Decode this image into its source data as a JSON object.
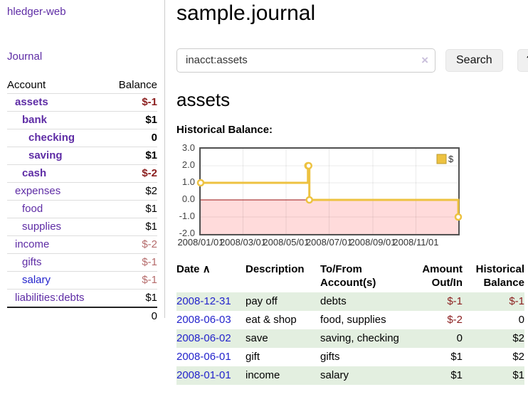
{
  "colors": {
    "purple": "#5e2ca5",
    "link_blue": "#2323cc",
    "negative_strong": "#8b1e1e",
    "negative_muted": "#b56b6b",
    "row_stripe_green": "#e3efe0",
    "chart_line_gold": "#edc240",
    "chart_negative_pink": "#ffdbdb",
    "chart_zero_line": "#991111"
  },
  "app": {
    "brand": "hledger-web",
    "nav_journal": "Journal"
  },
  "sidebar": {
    "accounts_header": "Account",
    "balance_header": "Balance",
    "accounts": [
      {
        "name": "assets",
        "balance": "$-1"
      },
      {
        "name": "bank",
        "balance": "$1"
      },
      {
        "name": "checking",
        "balance": "0"
      },
      {
        "name": "saving",
        "balance": "$1"
      },
      {
        "name": "cash",
        "balance": "$-2"
      },
      {
        "name": "expenses",
        "balance": "$2"
      },
      {
        "name": "food",
        "balance": "$1"
      },
      {
        "name": "supplies",
        "balance": "$1"
      },
      {
        "name": "income",
        "balance": "$-2"
      },
      {
        "name": "gifts",
        "balance": "$-1"
      },
      {
        "name": "salary",
        "balance": "$-1"
      },
      {
        "name": "liabilities:debts",
        "balance": "$1"
      }
    ],
    "total": "0"
  },
  "header": {
    "title": "sample.journal"
  },
  "search": {
    "value": "inacct:assets",
    "clear_icon": "×",
    "search_button": "Search",
    "help_button": "?"
  },
  "account_view": {
    "heading": "assets"
  },
  "chart_data": {
    "type": "line",
    "step": true,
    "title": "Historical Balance:",
    "xlabel": "",
    "ylabel": "",
    "xrange": [
      "2008-01-01",
      "2008-12-31"
    ],
    "ylim": [
      -2,
      3
    ],
    "y_ticks": [
      3.0,
      2.0,
      1.0,
      0.0,
      -1.0,
      -2.0
    ],
    "x_ticks": [
      "2008/01/01",
      "2008/03/01",
      "2008/05/01",
      "2008/07/01",
      "2008/09/01",
      "2008/11/01"
    ],
    "grid": true,
    "legend_position": "top-right",
    "series": [
      {
        "name": "$",
        "color": "#edc240",
        "points": [
          [
            "2008-01-01",
            1
          ],
          [
            "2008-06-01",
            2
          ],
          [
            "2008-06-02",
            2
          ],
          [
            "2008-06-03",
            0
          ],
          [
            "2008-12-31",
            -1
          ]
        ]
      }
    ]
  },
  "register": {
    "headers": {
      "date": "Date",
      "sort_indicator": "∧",
      "description": "Description",
      "tofrom": "To/From Account(s)",
      "amount": "Amount Out/In",
      "historical": "Historical Balance"
    },
    "rows": [
      {
        "date": "2008-12-31",
        "description": "pay off",
        "accounts": "debts",
        "amount": "$-1",
        "historical": "$-1"
      },
      {
        "date": "2008-06-03",
        "description": "eat & shop",
        "accounts": "food, supplies",
        "amount": "$-2",
        "historical": "0"
      },
      {
        "date": "2008-06-02",
        "description": "save",
        "accounts": "saving, checking",
        "amount": "0",
        "historical": "$2"
      },
      {
        "date": "2008-06-01",
        "description": "gift",
        "accounts": "gifts",
        "amount": "$1",
        "historical": "$2"
      },
      {
        "date": "2008-01-01",
        "description": "income",
        "accounts": "salary",
        "amount": "$1",
        "historical": "$1"
      }
    ]
  }
}
